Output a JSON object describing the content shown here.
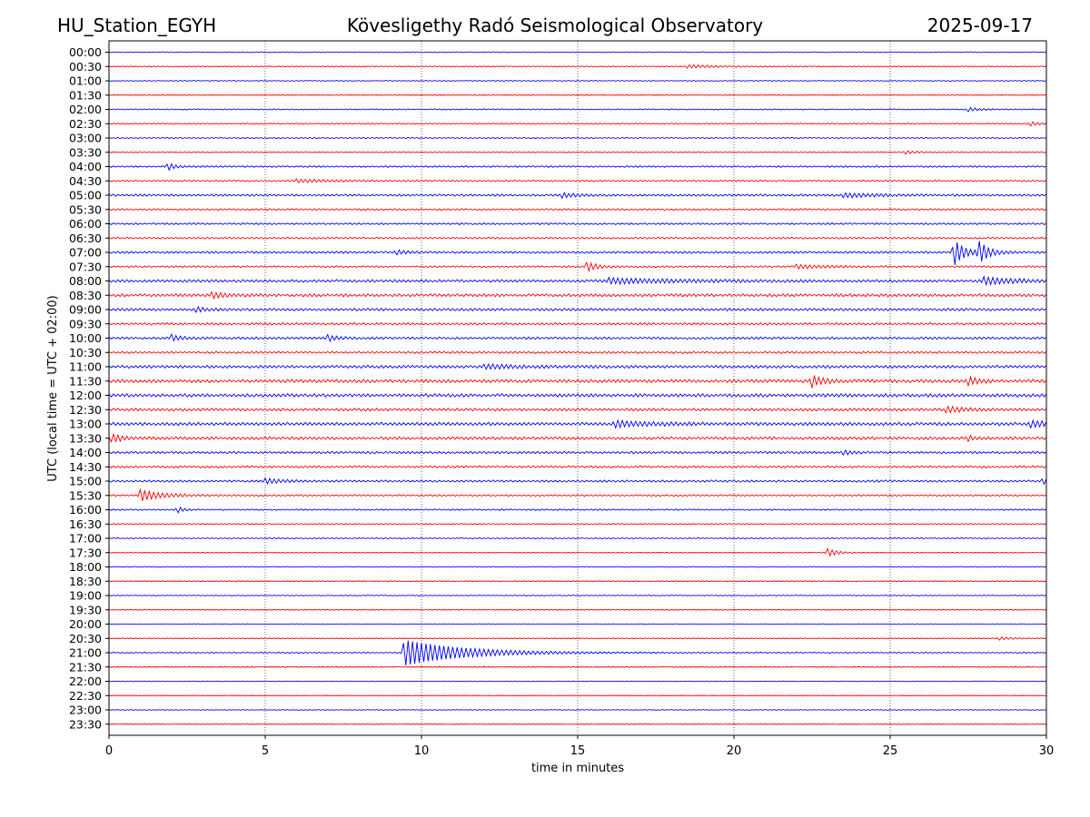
{
  "header": {
    "station": "HU_Station_EGYH",
    "title": "Kövesligethy Radó Seismological Observatory",
    "date": "2025-09-17"
  },
  "chart_data": {
    "type": "line",
    "subtype": "helicorder",
    "xlabel": "time in minutes",
    "ylabel": "UTC (local time = UTC + 02:00)",
    "xlim": [
      0,
      30
    ],
    "x_ticks": [
      0,
      5,
      10,
      15,
      20,
      25,
      30
    ],
    "grid": "vertical dotted at each x tick",
    "row_minutes": 30,
    "colors": {
      "even_rows": "#0000ff",
      "odd_rows": "#ff0000"
    },
    "rows": [
      {
        "label": "00:00",
        "noise": 0.5,
        "events": []
      },
      {
        "label": "00:30",
        "noise": 0.6,
        "events": [
          {
            "t": 18.5,
            "amp": 1.5,
            "dur": 1.0
          }
        ]
      },
      {
        "label": "01:00",
        "noise": 0.5,
        "events": []
      },
      {
        "label": "01:30",
        "noise": 0.5,
        "events": []
      },
      {
        "label": "02:00",
        "noise": 0.6,
        "events": [
          {
            "t": 27.5,
            "amp": 2.0,
            "dur": 0.3
          }
        ]
      },
      {
        "label": "02:30",
        "noise": 0.7,
        "events": [
          {
            "t": 29.5,
            "amp": 2.0,
            "dur": 0.3
          }
        ]
      },
      {
        "label": "03:00",
        "noise": 0.6,
        "events": []
      },
      {
        "label": "03:30",
        "noise": 0.7,
        "events": [
          {
            "t": 25.5,
            "amp": 1.5,
            "dur": 0.4
          }
        ]
      },
      {
        "label": "04:00",
        "noise": 0.9,
        "events": [
          {
            "t": 1.9,
            "amp": 4.0,
            "dur": 0.2
          }
        ]
      },
      {
        "label": "04:30",
        "noise": 0.9,
        "events": [
          {
            "t": 6.0,
            "amp": 1.5,
            "dur": 1.0
          }
        ]
      },
      {
        "label": "05:00",
        "noise": 1.2,
        "events": [
          {
            "t": 14.5,
            "amp": 2.0,
            "dur": 0.5
          },
          {
            "t": 23.5,
            "amp": 2.0,
            "dur": 1.0
          }
        ]
      },
      {
        "label": "05:30",
        "noise": 1.0,
        "events": []
      },
      {
        "label": "06:00",
        "noise": 1.0,
        "events": []
      },
      {
        "label": "06:30",
        "noise": 1.0,
        "events": []
      },
      {
        "label": "07:00",
        "noise": 1.2,
        "events": [
          {
            "t": 27.05,
            "amp": 14.0,
            "dur": 0.3
          },
          {
            "t": 27.85,
            "amp": 11.0,
            "dur": 0.3
          },
          {
            "t": 9.2,
            "amp": 2.0,
            "dur": 0.3
          }
        ]
      },
      {
        "label": "07:30",
        "noise": 1.0,
        "events": [
          {
            "t": 15.3,
            "amp": 5.0,
            "dur": 0.3
          },
          {
            "t": 22.0,
            "amp": 2.0,
            "dur": 0.8
          }
        ]
      },
      {
        "label": "08:00",
        "noise": 1.5,
        "events": [
          {
            "t": 16.0,
            "amp": 2.5,
            "dur": 2.0
          },
          {
            "t": 28.0,
            "amp": 3.5,
            "dur": 1.0
          }
        ]
      },
      {
        "label": "08:30",
        "noise": 1.6,
        "events": [
          {
            "t": 3.3,
            "amp": 2.5,
            "dur": 0.5
          }
        ]
      },
      {
        "label": "09:00",
        "noise": 1.5,
        "events": [
          {
            "t": 2.8,
            "amp": 2.0,
            "dur": 0.3
          }
        ]
      },
      {
        "label": "09:30",
        "noise": 1.3,
        "events": []
      },
      {
        "label": "10:00",
        "noise": 1.3,
        "events": [
          {
            "t": 2.0,
            "amp": 3.0,
            "dur": 0.3
          },
          {
            "t": 7.0,
            "amp": 3.0,
            "dur": 0.3
          }
        ]
      },
      {
        "label": "10:30",
        "noise": 1.2,
        "events": []
      },
      {
        "label": "11:00",
        "noise": 1.6,
        "events": [
          {
            "t": 12.0,
            "amp": 2.0,
            "dur": 1.0
          }
        ]
      },
      {
        "label": "11:30",
        "noise": 1.8,
        "events": [
          {
            "t": 22.5,
            "amp": 6.0,
            "dur": 0.3
          },
          {
            "t": 27.5,
            "amp": 4.0,
            "dur": 0.3
          }
        ]
      },
      {
        "label": "12:00",
        "noise": 1.8,
        "events": []
      },
      {
        "label": "12:30",
        "noise": 1.6,
        "events": [
          {
            "t": 26.8,
            "amp": 3.0,
            "dur": 0.5
          }
        ]
      },
      {
        "label": "13:00",
        "noise": 1.8,
        "events": [
          {
            "t": 16.2,
            "amp": 3.0,
            "dur": 1.0
          },
          {
            "t": 29.5,
            "amp": 3.0,
            "dur": 0.8
          }
        ]
      },
      {
        "label": "13:30",
        "noise": 1.6,
        "events": [
          {
            "t": 0.1,
            "amp": 4.0,
            "dur": 0.3
          },
          {
            "t": 27.5,
            "amp": 2.5,
            "dur": 0.2
          }
        ]
      },
      {
        "label": "14:00",
        "noise": 1.3,
        "events": [
          {
            "t": 23.5,
            "amp": 2.0,
            "dur": 0.3
          }
        ]
      },
      {
        "label": "14:30",
        "noise": 1.2,
        "events": []
      },
      {
        "label": "15:00",
        "noise": 1.2,
        "events": [
          {
            "t": 5.0,
            "amp": 2.5,
            "dur": 0.5
          },
          {
            "t": 29.9,
            "amp": 3.0,
            "dur": 0.2
          }
        ]
      },
      {
        "label": "15:30",
        "noise": 1.0,
        "events": [
          {
            "t": 1.0,
            "amp": 6.0,
            "dur": 0.6
          }
        ]
      },
      {
        "label": "16:00",
        "noise": 0.8,
        "events": [
          {
            "t": 2.2,
            "amp": 3.0,
            "dur": 0.2
          }
        ]
      },
      {
        "label": "16:30",
        "noise": 0.6,
        "events": []
      },
      {
        "label": "17:00",
        "noise": 0.6,
        "events": []
      },
      {
        "label": "17:30",
        "noise": 0.5,
        "events": [
          {
            "t": 23.0,
            "amp": 4.0,
            "dur": 0.3
          }
        ]
      },
      {
        "label": "18:00",
        "noise": 0.5,
        "events": []
      },
      {
        "label": "18:30",
        "noise": 0.4,
        "events": []
      },
      {
        "label": "19:00",
        "noise": 0.5,
        "events": []
      },
      {
        "label": "19:30",
        "noise": 0.4,
        "events": []
      },
      {
        "label": "20:00",
        "noise": 0.4,
        "events": []
      },
      {
        "label": "20:30",
        "noise": 0.5,
        "events": [
          {
            "t": 28.5,
            "amp": 1.5,
            "dur": 0.4
          }
        ]
      },
      {
        "label": "21:00",
        "noise": 0.6,
        "events": [
          {
            "t": 9.45,
            "amp": 14.0,
            "dur": 1.8
          }
        ]
      },
      {
        "label": "21:30",
        "noise": 0.4,
        "events": []
      },
      {
        "label": "22:00",
        "noise": 0.4,
        "events": []
      },
      {
        "label": "22:30",
        "noise": 0.4,
        "events": []
      },
      {
        "label": "23:00",
        "noise": 0.4,
        "events": []
      },
      {
        "label": "23:30",
        "noise": 0.4,
        "events": []
      }
    ]
  }
}
